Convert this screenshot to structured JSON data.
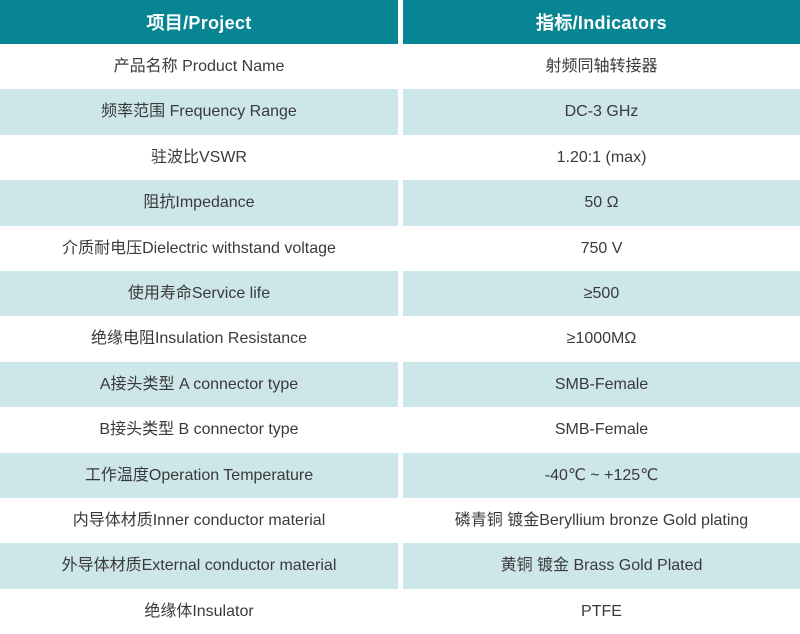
{
  "colors": {
    "header_bg": "#088593",
    "header_text": "#ffffff",
    "row_alt_bg": "#cde6ea",
    "text": "#3a3a3a"
  },
  "header": {
    "project": "项目/Project",
    "indicators": "指标/Indicators"
  },
  "rows": [
    {
      "project": "产品名称 Product Name",
      "indicator": "射频同轴转接器"
    },
    {
      "project": "频率范围 Frequency Range",
      "indicator": "DC-3 GHz"
    },
    {
      "project": "驻波比VSWR",
      "indicator": "1.20:1 (max)"
    },
    {
      "project": "阻抗Impedance",
      "indicator": "50 Ω"
    },
    {
      "project": "介质耐电压Dielectric withstand voltage",
      "indicator": "750 V"
    },
    {
      "project": "使用寿命Service life",
      "indicator": "≥500"
    },
    {
      "project": "绝缘电阻Insulation Resistance",
      "indicator": "≥1000MΩ"
    },
    {
      "project": "A接头类型 A connector type",
      "indicator": "SMB-Female"
    },
    {
      "project": "B接头类型 B connector type",
      "indicator": "SMB-Female"
    },
    {
      "project": "工作温度Operation Temperature",
      "indicator": "-40℃ ~ +125℃"
    },
    {
      "project": "内导体材质Inner conductor material",
      "indicator": "磷青铜 镀金Beryllium bronze Gold plating"
    },
    {
      "project": "外导体材质External conductor material",
      "indicator": "黄铜 镀金 Brass Gold Plated"
    },
    {
      "project": "绝缘体Insulator",
      "indicator": "PTFE"
    }
  ]
}
